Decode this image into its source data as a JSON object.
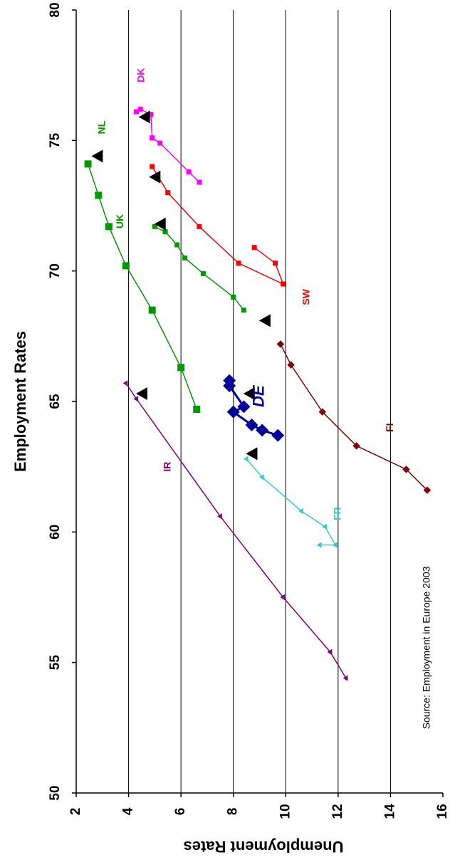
{
  "chart_data": {
    "type": "scatter",
    "orientation": "rotated-90-clockwise",
    "ylabel": "Employment Rates",
    "xlabel": "Unemployment Rates",
    "xlim": [
      2,
      16
    ],
    "ylim": [
      50,
      80
    ],
    "x_ticks": [
      "2",
      "4",
      "6",
      "8",
      "10",
      "12",
      "14",
      "16"
    ],
    "y_ticks": [
      "50",
      "55",
      "60",
      "65",
      "70",
      "75",
      "80"
    ],
    "gridlines_at_unemployment": [
      4,
      6,
      8,
      10,
      12,
      14
    ],
    "source": "Source: Employment in Europe 2003",
    "series": [
      {
        "name": "DK",
        "color": "#ff00ff",
        "marker": "square",
        "size": 7,
        "points": [
          [
            6.7,
            73.4
          ],
          [
            6.3,
            73.8
          ],
          [
            5.2,
            74.9
          ],
          [
            4.9,
            75.1
          ],
          [
            4.85,
            76
          ],
          [
            4.45,
            76.2
          ],
          [
            4.3,
            76.1
          ]
        ],
        "label_pos": [
          4.5,
          77.5
        ]
      },
      {
        "name": "NL",
        "color": "#009900",
        "marker": "square",
        "size": 10,
        "points": [
          [
            6.6,
            64.7
          ],
          [
            6.0,
            66.3
          ],
          [
            4.9,
            68.5
          ],
          [
            3.9,
            70.2
          ],
          [
            3.25,
            71.7
          ],
          [
            2.85,
            72.9
          ],
          [
            2.45,
            74.1
          ]
        ],
        "label_pos": [
          3.0,
          75.5
        ]
      },
      {
        "name": "UK",
        "color": "#009900",
        "marker": "square",
        "size": 7,
        "points": [
          [
            8.4,
            68.5
          ],
          [
            8.0,
            69.0
          ],
          [
            6.85,
            69.9
          ],
          [
            6.15,
            70.5
          ],
          [
            5.85,
            71.0
          ],
          [
            5.4,
            71.5
          ],
          [
            5.0,
            71.7
          ]
        ],
        "label_pos": [
          3.7,
          71.9
        ]
      },
      {
        "name": "SW",
        "color": "#ff0000",
        "marker": "square",
        "size": 7,
        "points": [
          [
            8.8,
            70.9
          ],
          [
            9.6,
            70.3
          ],
          [
            9.9,
            69.5
          ],
          [
            8.2,
            70.3
          ],
          [
            6.7,
            71.7
          ],
          [
            5.5,
            73.0
          ],
          [
            4.9,
            74.0
          ]
        ],
        "label_pos": [
          10.8,
          69.0
        ]
      },
      {
        "name": "FI",
        "color": "#800000",
        "marker": "diamond",
        "size": 7,
        "points": [
          [
            15.4,
            61.6
          ],
          [
            14.6,
            62.4
          ],
          [
            12.7,
            63.3
          ],
          [
            11.4,
            64.6
          ],
          [
            10.2,
            66.4
          ],
          [
            9.8,
            67.2
          ]
        ],
        "label_pos": [
          14.0,
          64.0
        ]
      },
      {
        "name": "DE",
        "color": "#000099",
        "marker": "diamond",
        "size": 12,
        "points": [
          [
            9.7,
            63.7
          ],
          [
            9.1,
            63.9
          ],
          [
            8.7,
            64.1
          ],
          [
            8.0,
            64.6
          ],
          [
            8.4,
            64.8
          ],
          [
            7.85,
            65.6
          ],
          [
            7.85,
            65.8
          ]
        ],
        "label_pos": [
          9.0,
          65.2
        ]
      },
      {
        "name": "FR",
        "color": "#33cccc",
        "marker": "triangle",
        "size": 6,
        "points": [
          [
            8.5,
            62.8
          ],
          [
            9.1,
            62.1
          ],
          [
            10.6,
            60.8
          ],
          [
            11.5,
            60.2
          ],
          [
            11.9,
            59.5
          ],
          [
            11.3,
            59.5
          ]
        ],
        "label_pos": [
          12.0,
          60.7
        ]
      },
      {
        "name": "IR",
        "color": "#800080",
        "marker": "triangle",
        "size": 6,
        "points": [
          [
            3.9,
            65.7
          ],
          [
            4.3,
            65.1
          ],
          [
            7.5,
            60.6
          ],
          [
            9.9,
            57.5
          ],
          [
            11.7,
            55.4
          ],
          [
            12.3,
            54.4
          ]
        ],
        "label_pos": [
          5.5,
          62.5
        ]
      }
    ],
    "highlight_points": [
      [
        4.6,
        75.9
      ],
      [
        2.8,
        74.4
      ],
      [
        5.0,
        73.6
      ],
      [
        5.2,
        71.8
      ],
      [
        9.2,
        68.1
      ],
      [
        4.5,
        65.3
      ],
      [
        8.6,
        65.3
      ],
      [
        8.7,
        63.0
      ]
    ]
  }
}
